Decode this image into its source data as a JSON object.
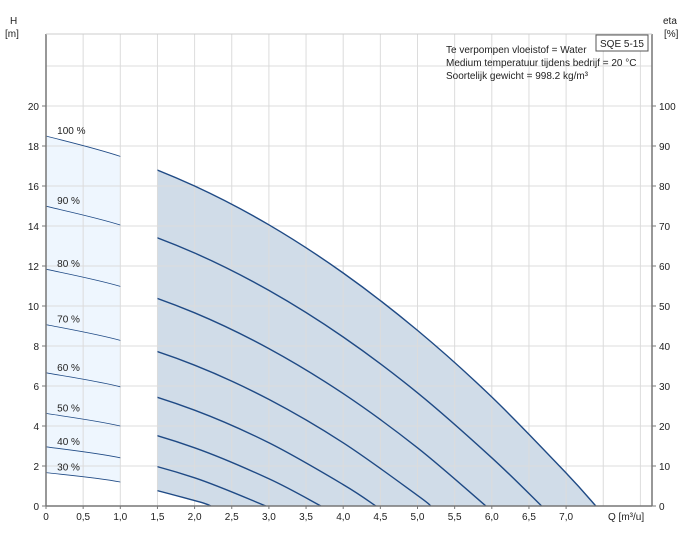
{
  "chart_data": {
    "type": "line",
    "title": "SQE 5-15",
    "annotations": [
      "Te verpompen vloeistof = Water",
      "Medium temperatuur tijdens bedrijf = 20 °C",
      "Soortelijk gewicht = 998.2 kg/m³"
    ],
    "xlabel": "Q [m³/u]",
    "ylabel": "H",
    "ylabel_unit": "[m]",
    "y2label": "eta",
    "y2label_unit": "[%]",
    "xlim": [
      0,
      8.15
    ],
    "ylim": [
      0,
      23.6
    ],
    "y2lim": [
      0,
      118
    ],
    "grid": true,
    "x_ticks": [
      "0",
      "0,5",
      "1,0",
      "1,5",
      "2,0",
      "2,5",
      "3,0",
      "3,5",
      "4,0",
      "4,5",
      "5,0",
      "5,5",
      "6,0",
      "6,5",
      "7,0"
    ],
    "x_tick_values": [
      0,
      0.5,
      1,
      1.5,
      2,
      2.5,
      3,
      3.5,
      4,
      4.5,
      5,
      5.5,
      6,
      6.5,
      7
    ],
    "y_ticks": [
      "0",
      "2",
      "4",
      "6",
      "8",
      "10",
      "12",
      "14",
      "16",
      "18",
      "20"
    ],
    "y_tick_values": [
      0,
      2,
      4,
      6,
      8,
      10,
      12,
      14,
      16,
      18,
      20
    ],
    "y2_ticks": [
      "0",
      "10",
      "20",
      "30",
      "40",
      "50",
      "60",
      "70",
      "80",
      "90",
      "100"
    ],
    "operating_region_min_q": 1.5,
    "colors": {
      "curve": "#1f4a85",
      "light_fill": "#eef6fe",
      "dark_fill": "#d0dce8",
      "grid": "#dcdcdc"
    },
    "series": [
      {
        "name": "100 %",
        "points": [
          [
            0,
            18.5
          ],
          [
            1,
            17.48
          ],
          [
            2,
            16.0
          ],
          [
            3,
            14.06
          ],
          [
            4,
            11.65
          ],
          [
            5,
            8.78
          ],
          [
            6,
            5.45
          ],
          [
            7,
            1.65
          ],
          [
            7.4,
            0
          ]
        ]
      },
      {
        "name": "90 %",
        "points": [
          [
            0,
            14.99
          ],
          [
            1,
            14.05
          ],
          [
            2,
            12.65
          ],
          [
            3,
            10.78
          ],
          [
            4,
            8.45
          ],
          [
            5,
            5.66
          ],
          [
            6,
            2.41
          ],
          [
            6.67,
            0
          ]
        ]
      },
      {
        "name": "80 %",
        "points": [
          [
            0,
            11.84
          ],
          [
            1,
            10.98
          ],
          [
            2,
            9.66
          ],
          [
            3,
            7.87
          ],
          [
            4,
            5.62
          ],
          [
            5,
            2.91
          ],
          [
            5.92,
            0
          ]
        ]
      },
      {
        "name": "70 %",
        "points": [
          [
            0,
            9.07
          ],
          [
            1,
            8.28
          ],
          [
            2,
            7.04
          ],
          [
            3,
            5.33
          ],
          [
            4,
            3.16
          ],
          [
            5,
            0.53
          ],
          [
            5.18,
            0
          ]
        ]
      },
      {
        "name": "60 %",
        "points": [
          [
            0,
            6.66
          ],
          [
            1,
            5.96
          ],
          [
            2,
            4.79
          ],
          [
            3,
            3.16
          ],
          [
            4,
            1.07
          ],
          [
            4.44,
            0
          ]
        ]
      },
      {
        "name": "50 %",
        "points": [
          [
            0,
            4.63
          ],
          [
            1,
            4.0
          ],
          [
            2,
            2.91
          ],
          [
            3,
            1.36
          ],
          [
            3.7,
            0
          ]
        ]
      },
      {
        "name": "40 %",
        "points": [
          [
            0,
            2.96
          ],
          [
            1,
            2.41
          ],
          [
            2,
            1.41
          ],
          [
            2.96,
            0
          ]
        ]
      },
      {
        "name": "30 %",
        "points": [
          [
            0,
            1.67
          ],
          [
            1,
            1.2
          ],
          [
            2,
            0.27
          ],
          [
            2.22,
            0
          ]
        ]
      }
    ]
  }
}
